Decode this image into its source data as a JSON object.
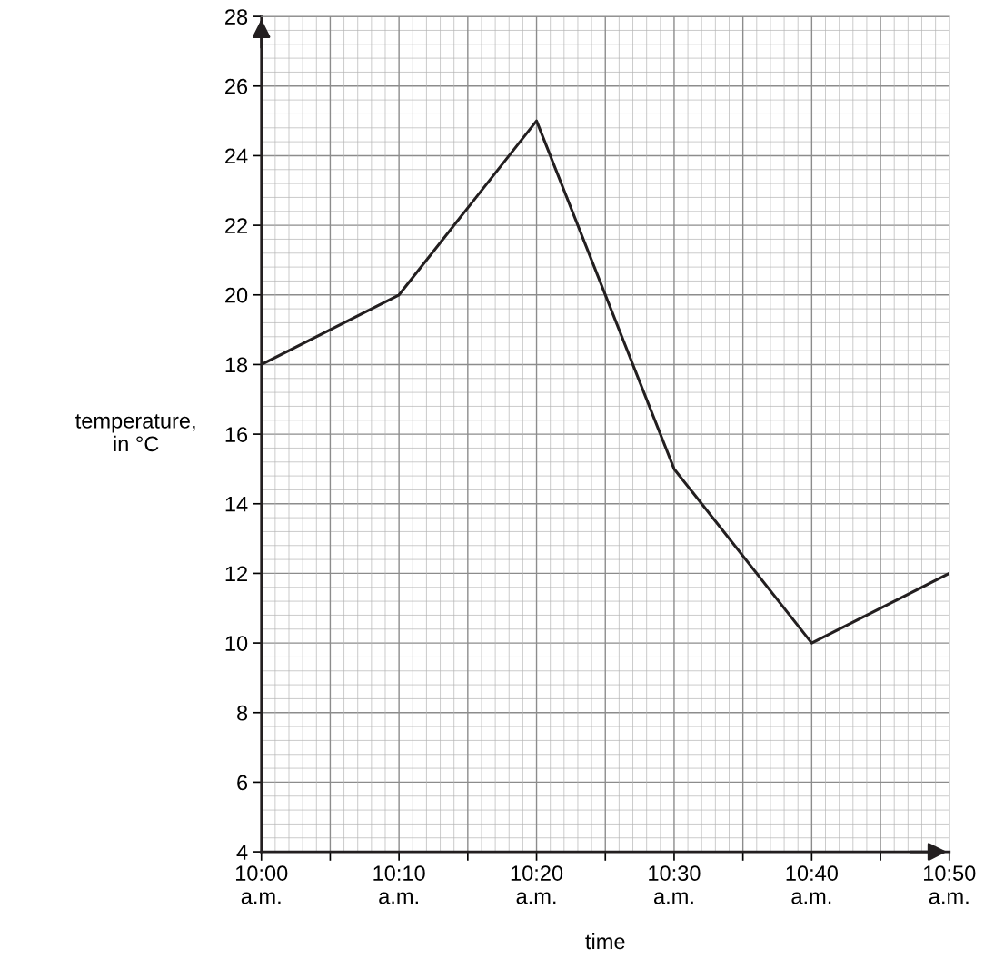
{
  "chart_data": {
    "type": "line",
    "xlabel": "time",
    "ylabel": "temperature,\nin °C",
    "categories": [
      "10:00\na.m.",
      "10:10\na.m.",
      "10:20\na.m.",
      "10:30\na.m.",
      "10:40\na.m.",
      "10:50\na.m."
    ],
    "series": [
      {
        "color": "#231f20",
        "values": [
          18,
          20,
          25,
          15,
          10,
          12
        ]
      }
    ],
    "ylim": [
      4,
      28
    ],
    "yticks": [
      4,
      6,
      8,
      10,
      12,
      14,
      16,
      18,
      20,
      22,
      24,
      26,
      28
    ],
    "grid": true,
    "marker": "none",
    "line_style": "solid"
  }
}
